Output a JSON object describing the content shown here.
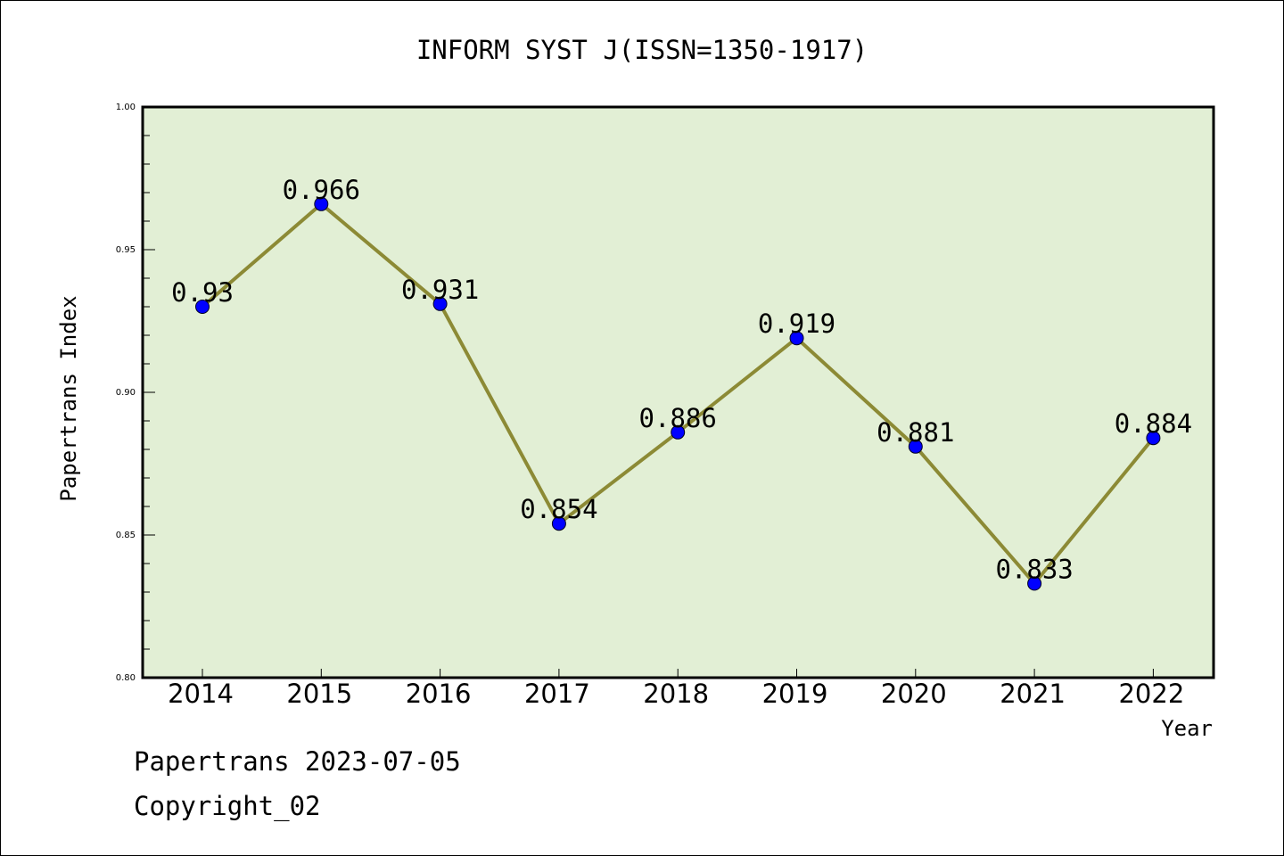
{
  "chart_data": {
    "type": "line",
    "title": "INFORM SYST J(ISSN=1350-1917)",
    "xlabel": "Year",
    "ylabel": "Papertrans Index",
    "categories": [
      "2014",
      "2015",
      "2016",
      "2017",
      "2018",
      "2019",
      "2020",
      "2021",
      "2022"
    ],
    "series": [
      {
        "values": [
          0.93,
          0.966,
          0.931,
          0.854,
          0.886,
          0.919,
          0.881,
          0.833,
          0.884
        ],
        "labels": [
          "0.93",
          "0.966",
          "0.931",
          "0.854",
          "0.886",
          "0.919",
          "0.881",
          "0.833",
          "0.884"
        ]
      }
    ],
    "ylim": [
      0.8,
      1.0
    ],
    "yticks": [
      "0.80",
      "0.85",
      "0.90",
      "0.95",
      "1.00"
    ],
    "yminor_step": 0.01,
    "grid": false,
    "colors": {
      "line": "#8c8a35",
      "marker": "#0000ff",
      "plot_background": "#e2efd5"
    }
  },
  "footer": {
    "line1": "Papertrans 2023-07-05",
    "line2": "Copyright_02"
  }
}
